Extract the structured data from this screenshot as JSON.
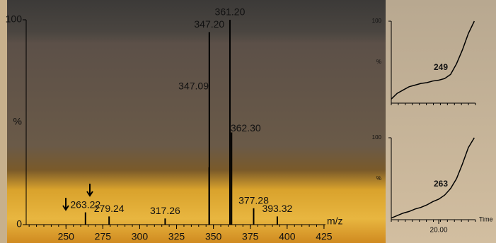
{
  "chart_data": [
    {
      "type": "stick",
      "x_label": "m/z",
      "y_label": "%",
      "x": [
        263.22,
        279.24,
        317.26,
        347.09,
        347.2,
        361.2,
        362.3,
        377.28,
        393.32
      ],
      "values": [
        6,
        4,
        3,
        28,
        94,
        100,
        45,
        8,
        4
      ],
      "labels": [
        "263.22",
        "279.24",
        "317.26",
        "347.09",
        "347.20",
        "361.20",
        "362.30",
        "377.28",
        "393.32"
      ],
      "color": "#000000",
      "xlim": [
        223,
        426
      ],
      "xticks": [
        250,
        275,
        300,
        325,
        350,
        375,
        400,
        425
      ],
      "ylim": [
        0,
        100
      ],
      "yticks": [
        0,
        100
      ]
    },
    {
      "type": "line",
      "y_label": "%",
      "annotation": "249",
      "color": "#000000",
      "x": [
        16,
        16.5,
        17,
        17.5,
        18,
        18.5,
        19,
        19.5,
        20,
        20.5,
        21,
        21.5,
        22,
        22.5,
        23
      ],
      "values": [
        5,
        12,
        16,
        20,
        22,
        24,
        25,
        27,
        28,
        30,
        35,
        48,
        65,
        85,
        100
      ],
      "xlim": [
        16,
        23.1
      ],
      "ylim": [
        0,
        100
      ],
      "yticks": [
        100
      ]
    },
    {
      "type": "line",
      "y_label": "%",
      "annotation": "263",
      "x_label": "Time",
      "color": "#000000",
      "x": [
        16,
        16.5,
        17,
        17.5,
        18,
        18.5,
        19,
        19.5,
        20,
        20.5,
        21,
        21.5,
        22,
        22.5,
        23
      ],
      "values": [
        2,
        5,
        8,
        10,
        13,
        15,
        18,
        22,
        25,
        30,
        38,
        50,
        68,
        88,
        100
      ],
      "xlim": [
        16,
        23.1
      ],
      "xticks": [
        {
          "value": 20,
          "label": "20.00"
        }
      ],
      "ylim": [
        0,
        100
      ],
      "yticks": [
        100
      ]
    }
  ]
}
